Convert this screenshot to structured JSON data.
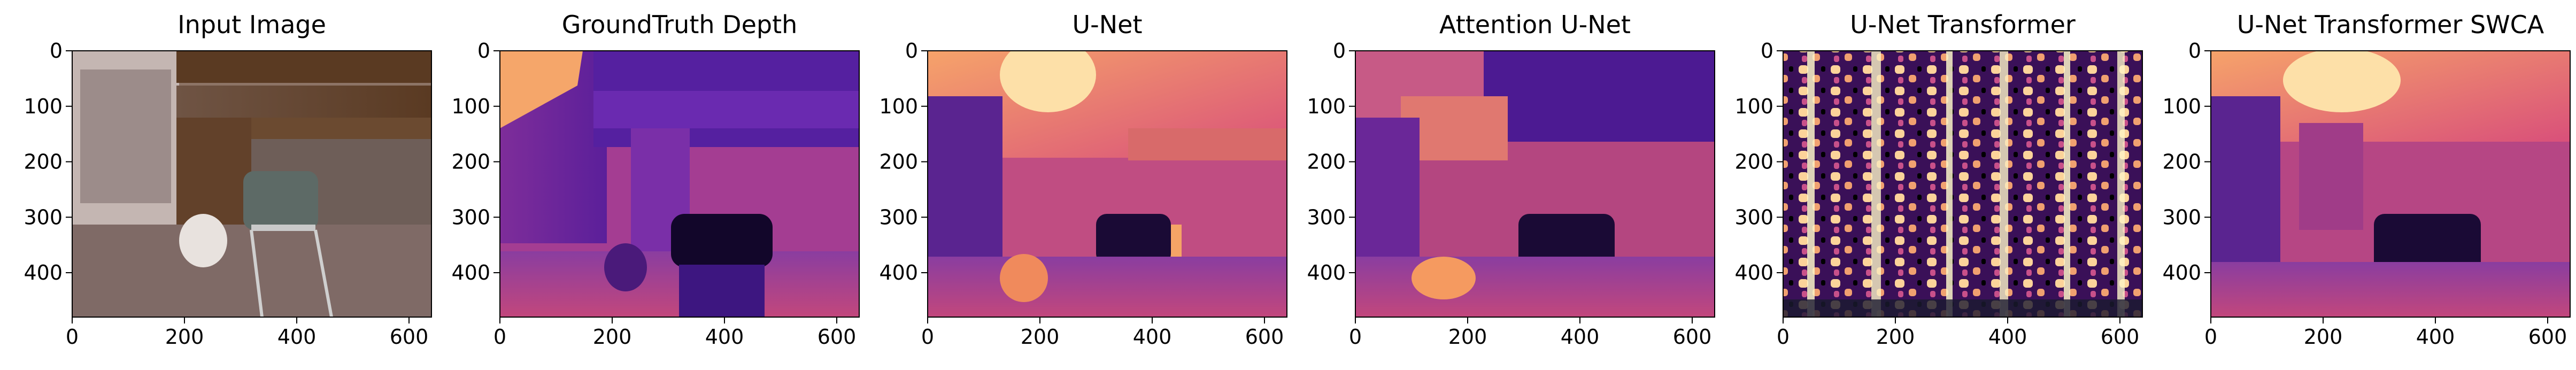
{
  "chart_data": [
    {
      "type": "image",
      "title": "Input Image",
      "xlim": [
        0,
        640
      ],
      "ylim": [
        480,
        0
      ],
      "xticks": [
        0,
        200,
        400,
        600
      ],
      "yticks": [
        0,
        100,
        200,
        300,
        400
      ],
      "palette": [
        "#6b5a52",
        "#7a6352",
        "#5e3b22",
        "#8a6a55",
        "#b7a8a0",
        "#d8d0cc",
        "#9a8a86",
        "#4a3a34"
      ]
    },
    {
      "type": "heatmap",
      "title": "GroundTruth Depth",
      "xlim": [
        0,
        640
      ],
      "ylim": [
        480,
        0
      ],
      "xticks": [
        0,
        200,
        400,
        600
      ],
      "yticks": [
        0,
        100,
        200,
        300,
        400
      ],
      "colormap": "magma"
    },
    {
      "type": "heatmap",
      "title": "U-Net",
      "xlim": [
        0,
        640
      ],
      "ylim": [
        480,
        0
      ],
      "xticks": [
        0,
        200,
        400,
        600
      ],
      "yticks": [
        0,
        100,
        200,
        300,
        400
      ],
      "colormap": "magma"
    },
    {
      "type": "heatmap",
      "title": "Attention U-Net",
      "xlim": [
        0,
        640
      ],
      "ylim": [
        480,
        0
      ],
      "xticks": [
        0,
        200,
        400,
        600
      ],
      "yticks": [
        0,
        100,
        200,
        300,
        400
      ],
      "colormap": "magma"
    },
    {
      "type": "heatmap",
      "title": "U-Net Transformer",
      "xlim": [
        0,
        640
      ],
      "ylim": [
        480,
        0
      ],
      "xticks": [
        0,
        200,
        400,
        600
      ],
      "yticks": [
        0,
        100,
        200,
        300,
        400
      ],
      "colormap": "magma"
    },
    {
      "type": "heatmap",
      "title": "U-Net Transformer SWCA",
      "xlim": [
        0,
        640
      ],
      "ylim": [
        480,
        0
      ],
      "xticks": [
        0,
        200,
        400,
        600
      ],
      "yticks": [
        0,
        100,
        200,
        300,
        400
      ],
      "colormap": "magma"
    }
  ],
  "colors": {
    "magma_dark": "#1a0a35",
    "magma_deep": "#3b1a78",
    "magma_purple": "#6a2fa0",
    "magma_mid": "#b0457a",
    "magma_red": "#e35a5a",
    "magma_orange": "#f8945c",
    "magma_light": "#fcd8a4",
    "magma_pale": "#fcf5c8"
  }
}
